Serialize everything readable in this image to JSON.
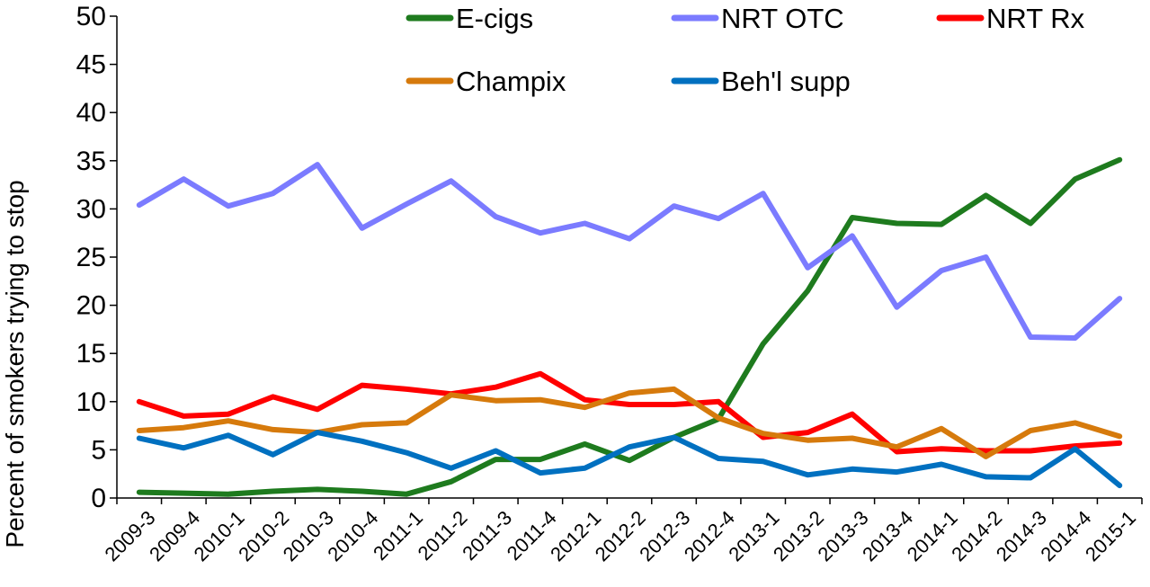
{
  "chart_data": {
    "type": "line",
    "title": "",
    "xlabel": "",
    "ylabel": "Percent of smokers trying to stop",
    "ylim": [
      0,
      50
    ],
    "yticks": [
      "0",
      "5",
      "10",
      "15",
      "20",
      "25",
      "30",
      "35",
      "40",
      "45",
      "50"
    ],
    "grid": false,
    "legend_position": "top",
    "categories": [
      "2009-3",
      "2009-4",
      "2010-1",
      "2010-2",
      "2010-3",
      "2010-4",
      "2011-1",
      "2011-2",
      "2011-3",
      "2011-4",
      "2012-1",
      "2012-2",
      "2012-3",
      "2012-4",
      "2013-1",
      "2013-2",
      "2013-3",
      "2013-4",
      "2014-1",
      "2014-2",
      "2014-3",
      "2014-4",
      "2015-1"
    ],
    "series": [
      {
        "name": "E-cigs",
        "color": "#1e7b1e",
        "values": [
          0.6,
          0.5,
          0.4,
          0.7,
          0.9,
          0.7,
          0.4,
          1.7,
          4.0,
          4.0,
          5.6,
          3.9,
          6.3,
          8.2,
          16.0,
          21.5,
          29.1,
          28.5,
          28.4,
          31.4,
          28.5,
          33.1,
          35.1
        ]
      },
      {
        "name": "NRT OTC",
        "color": "#7b7bff",
        "values": [
          30.4,
          33.1,
          30.3,
          31.6,
          34.6,
          28.0,
          30.5,
          32.9,
          29.2,
          27.5,
          28.5,
          26.9,
          30.3,
          29.0,
          31.6,
          23.9,
          27.2,
          19.8,
          23.6,
          25.0,
          16.7,
          16.6,
          20.7
        ]
      },
      {
        "name": "NRT Rx",
        "color": "#ff0000",
        "values": [
          10.0,
          8.5,
          8.7,
          10.5,
          9.2,
          11.7,
          11.3,
          10.8,
          11.5,
          12.9,
          10.2,
          9.7,
          9.7,
          10.0,
          6.3,
          6.8,
          8.7,
          4.8,
          5.1,
          4.9,
          4.9,
          5.4,
          5.7
        ]
      },
      {
        "name": "Champix",
        "color": "#d67a0c",
        "values": [
          7.0,
          7.3,
          8.0,
          7.1,
          6.8,
          7.6,
          7.8,
          10.7,
          10.1,
          10.2,
          9.4,
          10.9,
          11.3,
          8.3,
          6.7,
          6.0,
          6.2,
          5.3,
          7.2,
          4.3,
          7.0,
          7.8,
          6.4
        ]
      },
      {
        "name": "Beh'l supp",
        "color": "#0070c0",
        "values": [
          6.2,
          5.2,
          6.5,
          4.5,
          6.8,
          5.9,
          4.7,
          3.1,
          4.9,
          2.6,
          3.1,
          5.3,
          6.3,
          4.1,
          3.8,
          2.4,
          3.0,
          2.7,
          3.5,
          2.2,
          2.1,
          5.1,
          1.3
        ]
      }
    ]
  }
}
